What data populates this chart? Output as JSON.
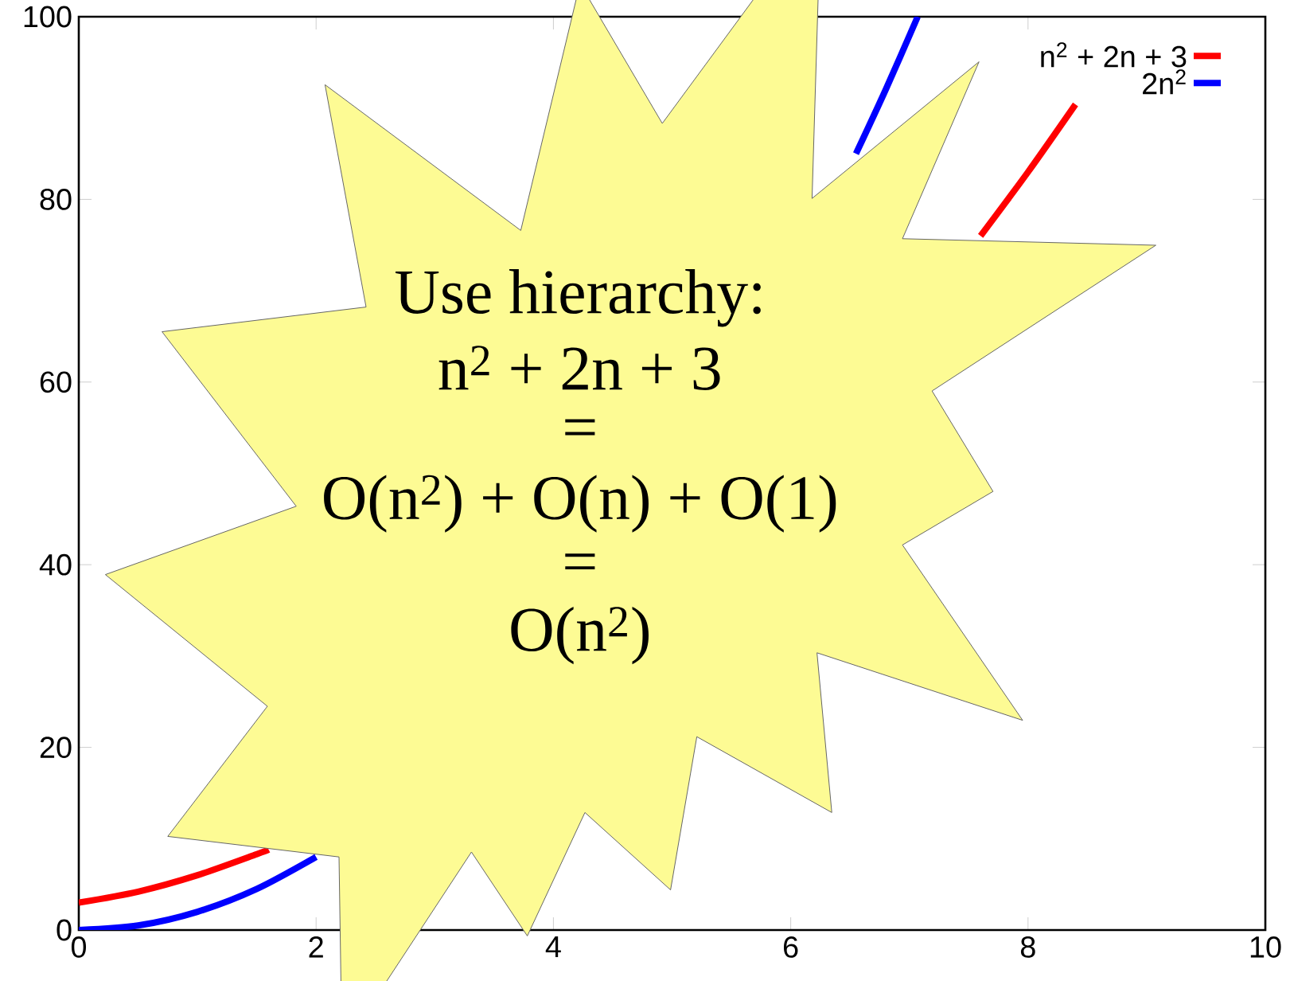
{
  "chart_data": {
    "type": "line",
    "marker": "none",
    "legend": "top right",
    "xlim": [
      0,
      10
    ],
    "ylim": [
      0,
      100
    ],
    "xticks": [
      0,
      2,
      4,
      6,
      8,
      10
    ],
    "yticks": [
      0,
      20,
      40,
      60,
      80,
      100
    ],
    "series": [
      {
        "name": "n$^{2}$ + 2n + 3",
        "color": "#ff0000",
        "x": [
          0,
          0.5,
          1,
          1.5,
          1.6,
          5,
          7.6,
          8,
          8.4
        ],
        "values": [
          3,
          4.2,
          6,
          8.3,
          8.8,
          null,
          76,
          83,
          90.4
        ]
      },
      {
        "name": "2n$^{2}$",
        "color": "#0000ff",
        "x": [
          0,
          0.5,
          1,
          1.5,
          2,
          5,
          6.55,
          6.8,
          7.07
        ],
        "values": [
          0,
          0.5,
          2,
          4.5,
          8,
          null,
          85,
          92,
          100
        ]
      }
    ],
    "annotations": [
      "Use hierarchy:",
      "n$^{2}$ + 2n + 3",
      "=",
      "O(n$^{2}$) + O(n) + O(1)",
      "=",
      "O(n$^{2}$)"
    ]
  }
}
